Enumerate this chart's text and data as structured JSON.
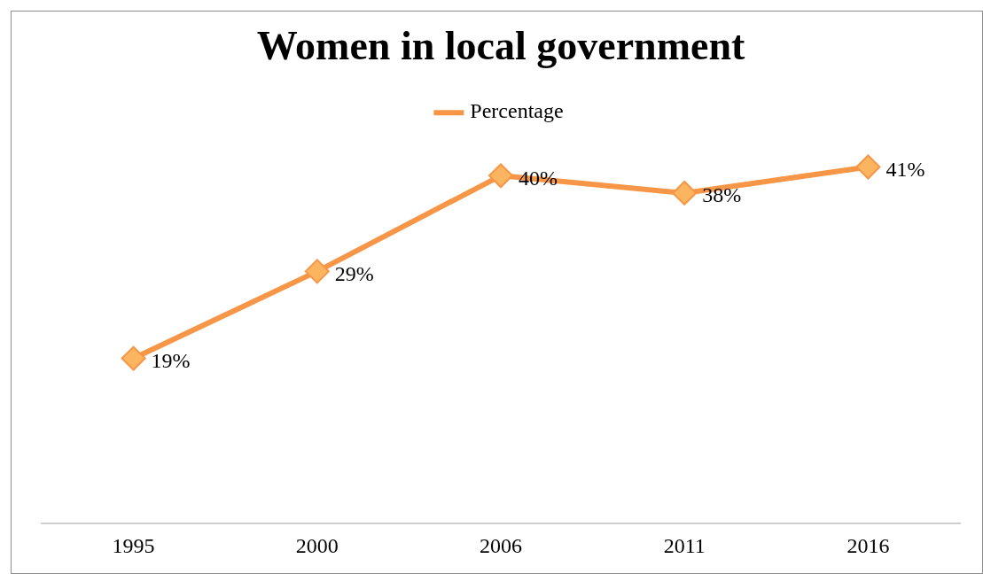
{
  "chart_data": {
    "type": "line",
    "title": "Women in local government",
    "categories": [
      "1995",
      "2000",
      "2006",
      "2011",
      "2016"
    ],
    "series": [
      {
        "name": "Percentage",
        "color": "#f79646",
        "values": [
          19,
          29,
          40,
          38,
          41
        ],
        "value_labels": [
          "19%",
          "29%",
          "40%",
          "38%",
          "41%"
        ]
      }
    ],
    "tick_labels": "x",
    "legend": "top",
    "marker": "diamond",
    "grid": false
  }
}
